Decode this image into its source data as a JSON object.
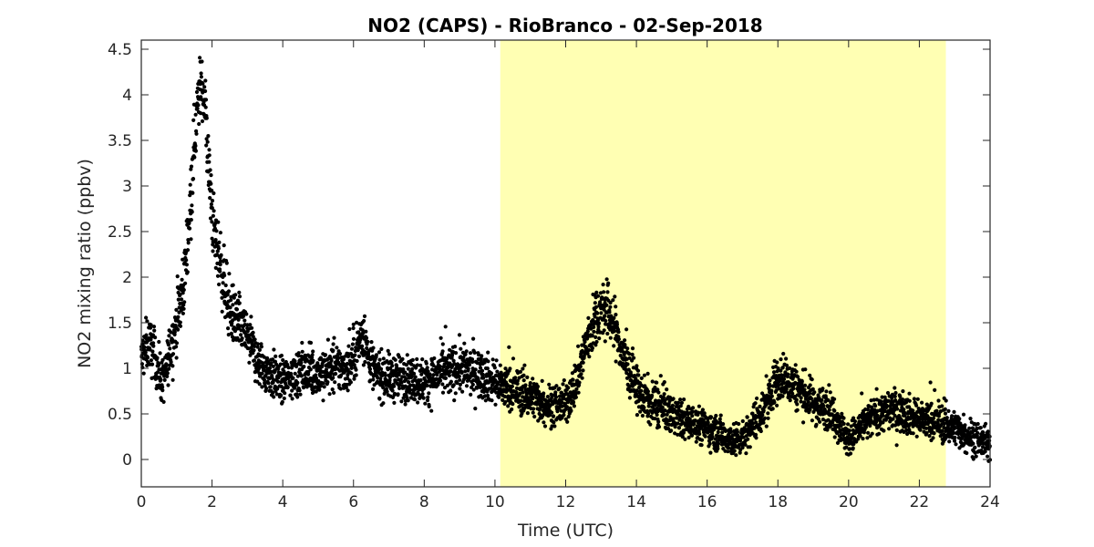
{
  "chart_data": {
    "type": "scatter",
    "title": "NO2 (CAPS) - RioBranco - 02-Sep-2018",
    "xlabel": "Time (UTC)",
    "ylabel": "NO2 mixing ratio (ppbv)",
    "xlim": [
      0,
      24
    ],
    "ylim": [
      -0.3,
      4.6
    ],
    "x_ticks": [
      0,
      2,
      4,
      6,
      8,
      10,
      12,
      14,
      16,
      18,
      20,
      22,
      24
    ],
    "y_ticks": [
      0,
      0.5,
      1,
      1.5,
      2,
      2.5,
      3,
      3.5,
      4,
      4.5
    ],
    "grid": false,
    "highlight_region": {
      "x_start": 10.15,
      "x_end": 22.75,
      "color": "#ffffb3"
    },
    "marker_color": "#000000",
    "series": [
      {
        "x": [
          0,
          0.2,
          0.4,
          0.6,
          0.7,
          0.8,
          1.0,
          1.2,
          1.4,
          1.5,
          1.6,
          1.7,
          1.8,
          1.9,
          2.0,
          2.1,
          2.2,
          2.3,
          2.5,
          2.7,
          3.0,
          3.3,
          3.6,
          4.0,
          4.5,
          5.0,
          5.5,
          5.9,
          6.1,
          6.3,
          6.4,
          6.6,
          7.0,
          7.5,
          8.0,
          8.5,
          9.0,
          9.5,
          10.0,
          10.5,
          11.0,
          11.5,
          12.0,
          12.3,
          12.6,
          12.9,
          13.1,
          13.3,
          13.5,
          13.8,
          14.1,
          14.5,
          15.0,
          15.5,
          16.0,
          16.5,
          16.8,
          17.1,
          17.4,
          17.7,
          17.9,
          18.2,
          18.5,
          18.8,
          19.1,
          19.5,
          19.8,
          20.0,
          20.2,
          20.5,
          20.8,
          21.2,
          21.6,
          22.0,
          22.5,
          23.0,
          23.5,
          24.0
        ],
        "y": [
          1.1,
          1.3,
          1.1,
          0.85,
          0.95,
          1.2,
          1.5,
          1.9,
          2.9,
          3.5,
          3.9,
          4.15,
          3.9,
          3.2,
          2.7,
          2.35,
          2.25,
          2.0,
          1.65,
          1.5,
          1.35,
          1.05,
          0.95,
          0.85,
          0.95,
          0.95,
          1.0,
          1.0,
          1.25,
          1.4,
          1.15,
          0.95,
          0.9,
          0.9,
          0.85,
          0.95,
          1.0,
          0.95,
          0.85,
          0.75,
          0.7,
          0.6,
          0.6,
          0.85,
          1.3,
          1.6,
          1.65,
          1.55,
          1.3,
          0.95,
          0.7,
          0.6,
          0.5,
          0.4,
          0.35,
          0.25,
          0.2,
          0.3,
          0.45,
          0.6,
          0.85,
          0.9,
          0.8,
          0.7,
          0.6,
          0.55,
          0.35,
          0.2,
          0.3,
          0.4,
          0.5,
          0.55,
          0.5,
          0.45,
          0.4,
          0.35,
          0.25,
          0.15
        ]
      }
    ]
  }
}
